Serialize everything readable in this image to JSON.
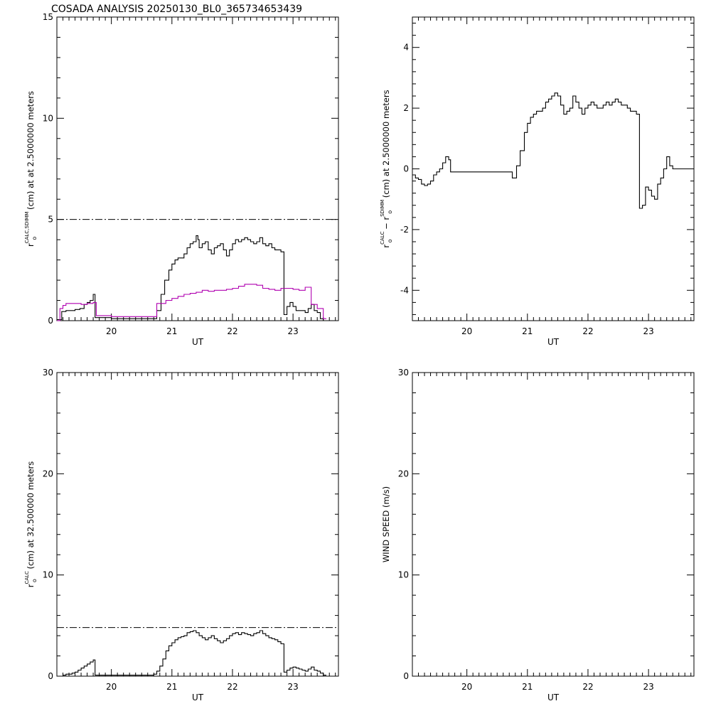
{
  "figure_title": "COSADA ANALYSIS 20250130_BL0_365734653439",
  "colors": {
    "axes": "#000000",
    "series_black": "#000000",
    "series_magenta": "#b000b0",
    "reference": "#000000"
  },
  "chart_data": [
    {
      "type": "line",
      "xlabel": "UT",
      "ylabel": {
        "base": "r",
        "sup": "CALC,SDIMM",
        "sub": "o",
        "rest": " (cm) at  at 2.5000000 meters"
      },
      "xlim": [
        19.1,
        23.75
      ],
      "ylim": [
        0,
        15
      ],
      "xticks": [
        20,
        21,
        22,
        23
      ],
      "yticks": [
        0,
        5,
        10,
        15
      ],
      "reference_line": {
        "y": 5,
        "style": "dash-dot"
      },
      "series": [
        {
          "color": "#000000",
          "x": [
            19.1,
            19.18,
            19.25,
            19.32,
            19.4,
            19.48,
            19.55,
            19.6,
            19.65,
            19.7,
            19.73,
            20.0,
            20.3,
            20.7,
            20.75,
            20.82,
            20.88,
            20.95,
            21.0,
            21.05,
            21.1,
            21.15,
            21.2,
            21.25,
            21.3,
            21.35,
            21.4,
            21.43,
            21.45,
            21.5,
            21.55,
            21.6,
            21.65,
            21.7,
            21.75,
            21.8,
            21.85,
            21.9,
            21.95,
            22.0,
            22.05,
            22.1,
            22.15,
            22.2,
            22.25,
            22.3,
            22.35,
            22.4,
            22.45,
            22.5,
            22.55,
            22.6,
            22.65,
            22.7,
            22.75,
            22.8,
            22.85,
            22.9,
            22.95,
            23.0,
            23.05,
            23.1,
            23.15,
            23.2,
            23.25,
            23.3,
            23.35,
            23.4,
            23.45,
            23.5
          ],
          "y": [
            0.05,
            0.45,
            0.5,
            0.5,
            0.55,
            0.6,
            0.8,
            0.9,
            1.0,
            1.3,
            0.15,
            0.1,
            0.1,
            0.1,
            0.5,
            1.3,
            2.0,
            2.5,
            2.8,
            3.0,
            3.1,
            3.1,
            3.3,
            3.6,
            3.8,
            3.9,
            4.2,
            4.0,
            3.6,
            3.8,
            3.9,
            3.5,
            3.3,
            3.6,
            3.7,
            3.8,
            3.5,
            3.2,
            3.5,
            3.8,
            4.0,
            3.9,
            4.0,
            4.1,
            4.0,
            3.9,
            3.8,
            3.9,
            4.1,
            3.8,
            3.7,
            3.8,
            3.6,
            3.5,
            3.5,
            3.4,
            0.3,
            0.7,
            0.9,
            0.7,
            0.5,
            0.5,
            0.5,
            0.4,
            0.6,
            0.8,
            0.5,
            0.4,
            0.1,
            0.0
          ]
        },
        {
          "color": "#b000b0",
          "x": [
            19.1,
            19.15,
            19.2,
            19.25,
            19.3,
            19.4,
            19.5,
            19.6,
            19.7,
            19.75,
            20.0,
            20.3,
            20.7,
            20.75,
            20.9,
            21.0,
            21.1,
            21.2,
            21.3,
            21.4,
            21.5,
            21.6,
            21.7,
            21.8,
            21.9,
            22.0,
            22.1,
            22.2,
            22.3,
            22.4,
            22.5,
            22.6,
            22.7,
            22.8,
            22.9,
            23.0,
            23.1,
            23.2,
            23.3,
            23.4,
            23.5
          ],
          "y": [
            0.0,
            0.6,
            0.75,
            0.85,
            0.85,
            0.85,
            0.8,
            0.85,
            0.9,
            0.25,
            0.2,
            0.2,
            0.2,
            0.85,
            1.0,
            1.1,
            1.2,
            1.3,
            1.35,
            1.4,
            1.5,
            1.45,
            1.5,
            1.5,
            1.55,
            1.6,
            1.7,
            1.8,
            1.8,
            1.75,
            1.6,
            1.55,
            1.5,
            1.6,
            1.6,
            1.55,
            1.5,
            1.65,
            0.8,
            0.6,
            0.1
          ]
        }
      ]
    },
    {
      "type": "line",
      "xlabel": "UT",
      "ylabel": {
        "base": "r",
        "sup": "CALC",
        "sub": "o",
        "mid": "  − r",
        "sup2": "SDIMM",
        "sub2": "o",
        "rest": " (cm) at 2.5000000 meters"
      },
      "xlim": [
        19.1,
        23.75
      ],
      "ylim": [
        -5,
        5
      ],
      "xticks": [
        20,
        21,
        22,
        23
      ],
      "yticks": [
        -4,
        -2,
        0,
        2,
        4
      ],
      "series": [
        {
          "color": "#000000",
          "x": [
            19.1,
            19.15,
            19.2,
            19.25,
            19.3,
            19.35,
            19.4,
            19.45,
            19.5,
            19.55,
            19.6,
            19.65,
            19.7,
            19.73,
            20.0,
            20.3,
            20.7,
            20.75,
            20.82,
            20.88,
            20.95,
            21.0,
            21.05,
            21.1,
            21.15,
            21.2,
            21.25,
            21.3,
            21.35,
            21.4,
            21.45,
            21.5,
            21.55,
            21.6,
            21.65,
            21.7,
            21.75,
            21.8,
            21.85,
            21.9,
            21.95,
            22.0,
            22.05,
            22.1,
            22.15,
            22.2,
            22.25,
            22.3,
            22.35,
            22.4,
            22.45,
            22.5,
            22.55,
            22.6,
            22.65,
            22.7,
            22.75,
            22.8,
            22.85,
            22.9,
            22.95,
            23.0,
            23.05,
            23.1,
            23.15,
            23.2,
            23.25,
            23.3,
            23.35,
            23.4,
            23.45,
            23.5,
            23.75
          ],
          "y": [
            -0.2,
            -0.3,
            -0.35,
            -0.5,
            -0.55,
            -0.5,
            -0.4,
            -0.2,
            -0.1,
            0.0,
            0.2,
            0.4,
            0.3,
            -0.1,
            -0.1,
            -0.1,
            -0.1,
            -0.3,
            0.1,
            0.6,
            1.2,
            1.5,
            1.7,
            1.8,
            1.9,
            1.9,
            2.0,
            2.2,
            2.3,
            2.4,
            2.5,
            2.4,
            2.1,
            1.8,
            1.9,
            2.0,
            2.4,
            2.2,
            2.0,
            1.8,
            2.0,
            2.1,
            2.2,
            2.1,
            2.0,
            2.0,
            2.1,
            2.2,
            2.1,
            2.2,
            2.3,
            2.2,
            2.1,
            2.1,
            2.0,
            1.9,
            1.9,
            1.8,
            -1.3,
            -1.2,
            -0.6,
            -0.7,
            -0.9,
            -1.0,
            -0.5,
            -0.3,
            0.0,
            0.4,
            0.1,
            0.0,
            0.0,
            0.0,
            0.0
          ]
        }
      ]
    },
    {
      "type": "line",
      "xlabel": "UT",
      "ylabel": {
        "base": "r",
        "sup": "CALC",
        "sub": "o",
        "rest": " (cm) at 32.500000 meters"
      },
      "xlim": [
        19.1,
        23.75
      ],
      "ylim": [
        0,
        30
      ],
      "xticks": [
        20,
        21,
        22,
        23
      ],
      "yticks": [
        0,
        10,
        20,
        30
      ],
      "reference_line": {
        "y": 4.8,
        "style": "dash-dot"
      },
      "series": [
        {
          "color": "#000000",
          "x": [
            19.2,
            19.25,
            19.3,
            19.35,
            19.4,
            19.45,
            19.5,
            19.55,
            19.6,
            19.65,
            19.7,
            19.73,
            20.0,
            20.3,
            20.7,
            20.75,
            20.8,
            20.85,
            20.9,
            20.95,
            21.0,
            21.05,
            21.1,
            21.15,
            21.2,
            21.25,
            21.3,
            21.35,
            21.4,
            21.45,
            21.5,
            21.55,
            21.6,
            21.65,
            21.7,
            21.75,
            21.8,
            21.85,
            21.9,
            21.95,
            22.0,
            22.05,
            22.1,
            22.15,
            22.2,
            22.25,
            22.3,
            22.35,
            22.4,
            22.45,
            22.5,
            22.55,
            22.6,
            22.65,
            22.7,
            22.75,
            22.8,
            22.85,
            22.9,
            22.95,
            23.0,
            23.05,
            23.1,
            23.15,
            23.2,
            23.25,
            23.3,
            23.35,
            23.4,
            23.45,
            23.5
          ],
          "y": [
            0.1,
            0.2,
            0.2,
            0.3,
            0.4,
            0.6,
            0.8,
            1.0,
            1.2,
            1.4,
            1.6,
            0.1,
            0.1,
            0.1,
            0.2,
            0.5,
            1.0,
            1.7,
            2.5,
            3.0,
            3.3,
            3.6,
            3.8,
            3.9,
            4.0,
            4.3,
            4.4,
            4.5,
            4.3,
            4.0,
            3.8,
            3.6,
            3.8,
            4.0,
            3.7,
            3.5,
            3.3,
            3.5,
            3.7,
            4.0,
            4.2,
            4.3,
            4.1,
            4.3,
            4.2,
            4.1,
            4.0,
            4.2,
            4.3,
            4.5,
            4.2,
            4.0,
            3.8,
            3.7,
            3.6,
            3.4,
            3.2,
            0.4,
            0.6,
            0.8,
            0.9,
            0.8,
            0.7,
            0.6,
            0.5,
            0.7,
            0.9,
            0.6,
            0.5,
            0.3,
            0.1
          ]
        }
      ]
    },
    {
      "type": "line",
      "xlabel": "UT",
      "ylabel": {
        "base": "WIND SPEED (m/s)"
      },
      "xlim": [
        19.1,
        23.75
      ],
      "ylim": [
        0,
        30
      ],
      "xticks": [
        20,
        21,
        22,
        23
      ],
      "yticks": [
        0,
        10,
        20,
        30
      ],
      "series": []
    }
  ]
}
